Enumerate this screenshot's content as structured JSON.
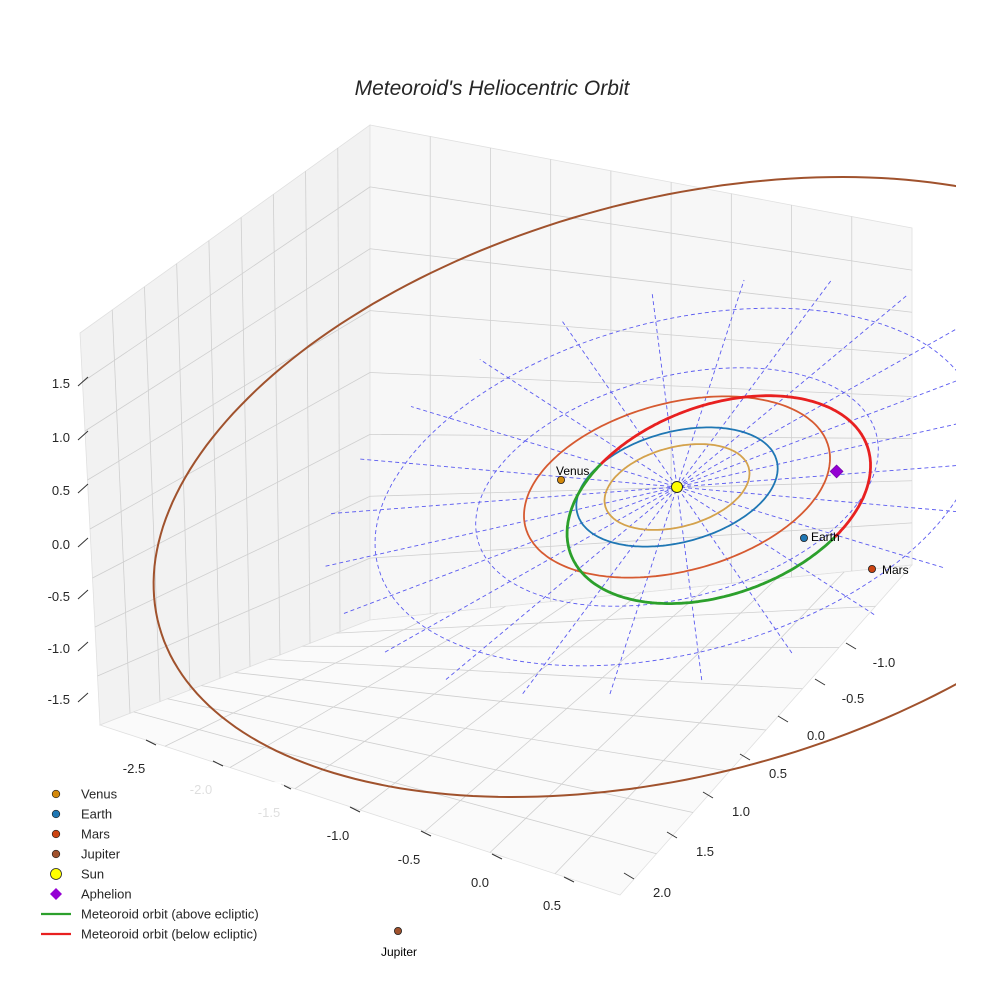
{
  "chart_data": {
    "type": "line",
    "title": "Meteoroid's Heliocentric Orbit",
    "projection": "3d",
    "axes": {
      "x": {
        "ticks": [
          "-2.5",
          "-2.0",
          "-1.5",
          "-1.0",
          "-0.5",
          "0.0",
          "0.5"
        ]
      },
      "y": {
        "ticks": [
          "-1.0",
          "-0.5",
          "0.0",
          "0.5",
          "1.0",
          "1.5",
          "2.0"
        ]
      },
      "z": {
        "ticks": [
          "1.5",
          "1.0",
          "0.5",
          "0.0",
          "-0.5",
          "-1.0",
          "-1.5"
        ]
      }
    },
    "ecliptic_grid_radii_au": [
      1,
      2,
      3
    ],
    "planet_orbits": [
      {
        "name": "Venus",
        "a_au": 0.72,
        "color": "#d4a24c"
      },
      {
        "name": "Earth",
        "a_au": 1.0,
        "color": "#1f77b4"
      },
      {
        "name": "Mars",
        "a_au": 1.52,
        "color": "#d65a31"
      },
      {
        "name": "Jupiter",
        "a_au": 5.2,
        "color": "#a0522d"
      }
    ],
    "planets": [
      {
        "name": "Venus",
        "label": "Venus",
        "color": "#d4890b"
      },
      {
        "name": "Earth",
        "label": "Earth",
        "color": "#1f77b4"
      },
      {
        "name": "Mars",
        "label": "Mars",
        "color": "#cc4411"
      },
      {
        "name": "Jupiter",
        "label": "Jupiter",
        "color": "#a0522d"
      }
    ],
    "sun": {
      "name": "Sun",
      "x": 0,
      "y": 0,
      "z": 0,
      "color": "#ffff00"
    },
    "aphelion": {
      "name": "Aphelion",
      "color": "#9400d3"
    },
    "meteoroid_orbit": {
      "above_color": "#2ca02c",
      "below_color": "#e82020",
      "above_label": "Meteoroid orbit (above ecliptic)",
      "below_label": "Meteoroid orbit (below ecliptic)"
    },
    "legend": {
      "position": "bottom-left",
      "entries": [
        {
          "label": "Venus",
          "marker": "dot",
          "color": "#d4890b"
        },
        {
          "label": "Earth",
          "marker": "dot",
          "color": "#1f77b4"
        },
        {
          "label": "Mars",
          "marker": "dot",
          "color": "#cc4411"
        },
        {
          "label": "Jupiter",
          "marker": "dot",
          "color": "#a0522d"
        },
        {
          "label": "Sun",
          "marker": "big-dot",
          "color": "#ffff00"
        },
        {
          "label": "Aphelion",
          "marker": "diamond",
          "color": "#9400d3"
        },
        {
          "label": "Meteoroid orbit (above ecliptic)",
          "marker": "line",
          "color": "#2ca02c"
        },
        {
          "label": "Meteoroid orbit (below ecliptic)",
          "marker": "line",
          "color": "#e82020"
        }
      ]
    }
  }
}
